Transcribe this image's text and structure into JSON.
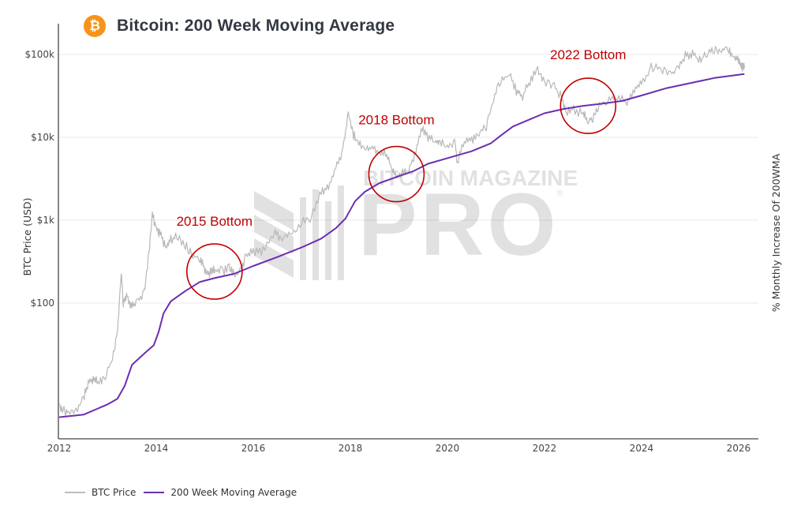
{
  "header": {
    "logo_icon": "bitcoin-icon",
    "logo_glyph": "₿",
    "title": "Bitcoin: 200 Week Moving Average"
  },
  "watermark": {
    "line1": "BITCOIN MAGAZINE",
    "line2": "PRO",
    "reg": "®"
  },
  "colors": {
    "price": "#b8b8b8",
    "wma": "#6a2fb0",
    "annotation": "#c00000",
    "logo": "#f7931a"
  },
  "chart_data": {
    "type": "line",
    "title": "Bitcoin: 200 Week Moving Average",
    "xlabel": "",
    "ylabel": "BTC Price (USD)",
    "y2label": "% Monthly Increase Of 200WMA",
    "yscale": "log",
    "ylim": [
      2.3,
      180000
    ],
    "xlim": [
      2012,
      2026.4
    ],
    "x_ticks": [
      "2012",
      "2014",
      "2016",
      "2018",
      "2020",
      "2022",
      "2024",
      "2026"
    ],
    "y_ticks": [
      {
        "value": 100000,
        "label": "$100k"
      },
      {
        "value": 10000,
        "label": "$10k"
      },
      {
        "value": 1000,
        "label": "$1k"
      },
      {
        "value": 100,
        "label": "$100"
      }
    ],
    "grid": true,
    "legend_position": "bottom-left",
    "series": [
      {
        "name": "BTC Price",
        "points": [
          [
            2012.0,
            6
          ],
          [
            2012.1,
            5
          ],
          [
            2012.2,
            4.8
          ],
          [
            2012.35,
            5
          ],
          [
            2012.5,
            7
          ],
          [
            2012.6,
            11
          ],
          [
            2012.7,
            12
          ],
          [
            2012.8,
            11
          ],
          [
            2012.95,
            13
          ],
          [
            2013.1,
            22
          ],
          [
            2013.2,
            45
          ],
          [
            2013.28,
            230
          ],
          [
            2013.32,
            100
          ],
          [
            2013.4,
            120
          ],
          [
            2013.5,
            90
          ],
          [
            2013.6,
            105
          ],
          [
            2013.75,
            130
          ],
          [
            2013.85,
            400
          ],
          [
            2013.92,
            1150
          ],
          [
            2014.0,
            800
          ],
          [
            2014.1,
            650
          ],
          [
            2014.2,
            450
          ],
          [
            2014.3,
            600
          ],
          [
            2014.45,
            620
          ],
          [
            2014.6,
            500
          ],
          [
            2014.75,
            380
          ],
          [
            2014.9,
            330
          ],
          [
            2015.0,
            260
          ],
          [
            2015.1,
            230
          ],
          [
            2015.2,
            250
          ],
          [
            2015.35,
            240
          ],
          [
            2015.5,
            270
          ],
          [
            2015.6,
            220
          ],
          [
            2015.75,
            250
          ],
          [
            2015.85,
            380
          ],
          [
            2016.0,
            420
          ],
          [
            2016.2,
            420
          ],
          [
            2016.45,
            680
          ],
          [
            2016.6,
            600
          ],
          [
            2016.8,
            700
          ],
          [
            2017.0,
            950
          ],
          [
            2017.2,
            1100
          ],
          [
            2017.4,
            2200
          ],
          [
            2017.55,
            2600
          ],
          [
            2017.7,
            4400
          ],
          [
            2017.85,
            7000
          ],
          [
            2017.96,
            19500
          ],
          [
            2018.05,
            11000
          ],
          [
            2018.15,
            9000
          ],
          [
            2018.3,
            7000
          ],
          [
            2018.45,
            7500
          ],
          [
            2018.6,
            6500
          ],
          [
            2018.75,
            6400
          ],
          [
            2018.87,
            4000
          ],
          [
            2018.95,
            3500
          ],
          [
            2019.05,
            3600
          ],
          [
            2019.2,
            4000
          ],
          [
            2019.35,
            7000
          ],
          [
            2019.48,
            13000
          ],
          [
            2019.6,
            10000
          ],
          [
            2019.75,
            8500
          ],
          [
            2019.85,
            9000
          ],
          [
            2020.0,
            7200
          ],
          [
            2020.15,
            9500
          ],
          [
            2020.2,
            5000
          ],
          [
            2020.35,
            8800
          ],
          [
            2020.5,
            9300
          ],
          [
            2020.65,
            11500
          ],
          [
            2020.8,
            13000
          ],
          [
            2020.95,
            29000
          ],
          [
            2021.1,
            48000
          ],
          [
            2021.28,
            60000
          ],
          [
            2021.42,
            36000
          ],
          [
            2021.55,
            32000
          ],
          [
            2021.7,
            47000
          ],
          [
            2021.86,
            66000
          ],
          [
            2022.0,
            47000
          ],
          [
            2022.2,
            42000
          ],
          [
            2022.35,
            30000
          ],
          [
            2022.45,
            20000
          ],
          [
            2022.6,
            22000
          ],
          [
            2022.8,
            19000
          ],
          [
            2022.9,
            16500
          ],
          [
            2023.0,
            17000
          ],
          [
            2023.1,
            23000
          ],
          [
            2023.3,
            28000
          ],
          [
            2023.5,
            30000
          ],
          [
            2023.7,
            26500
          ],
          [
            2023.85,
            37000
          ],
          [
            2024.0,
            44000
          ],
          [
            2024.2,
            70000
          ],
          [
            2024.4,
            66000
          ],
          [
            2024.6,
            58000
          ],
          [
            2024.75,
            66000
          ],
          [
            2024.9,
            98000
          ],
          [
            2025.05,
            102000
          ],
          [
            2025.2,
            84000
          ],
          [
            2025.35,
            104000
          ],
          [
            2025.5,
            118000
          ],
          [
            2025.65,
            113000
          ],
          [
            2025.8,
            115000
          ],
          [
            2025.9,
            95000
          ],
          [
            2026.0,
            88000
          ],
          [
            2026.08,
            70000
          ],
          [
            2026.12,
            68000
          ]
        ]
      },
      {
        "name": "200 Week Moving Average",
        "points": [
          [
            2012.0,
            4.2
          ],
          [
            2012.5,
            4.5
          ],
          [
            2013.0,
            6
          ],
          [
            2013.2,
            7
          ],
          [
            2013.35,
            10
          ],
          [
            2013.5,
            18
          ],
          [
            2013.8,
            26
          ],
          [
            2013.95,
            31
          ],
          [
            2014.05,
            45
          ],
          [
            2014.15,
            75
          ],
          [
            2014.3,
            105
          ],
          [
            2014.6,
            140
          ],
          [
            2014.9,
            180
          ],
          [
            2015.2,
            200
          ],
          [
            2015.6,
            225
          ],
          [
            2016.0,
            280
          ],
          [
            2016.5,
            360
          ],
          [
            2017.0,
            470
          ],
          [
            2017.4,
            600
          ],
          [
            2017.7,
            800
          ],
          [
            2017.9,
            1050
          ],
          [
            2018.1,
            1700
          ],
          [
            2018.3,
            2200
          ],
          [
            2018.6,
            2800
          ],
          [
            2019.0,
            3400
          ],
          [
            2019.3,
            3900
          ],
          [
            2019.6,
            4800
          ],
          [
            2020.0,
            5600
          ],
          [
            2020.5,
            6800
          ],
          [
            2020.9,
            8500
          ],
          [
            2021.1,
            10500
          ],
          [
            2021.35,
            13500
          ],
          [
            2021.7,
            16500
          ],
          [
            2022.0,
            19500
          ],
          [
            2022.4,
            22000
          ],
          [
            2022.8,
            24000
          ],
          [
            2023.2,
            25500
          ],
          [
            2023.6,
            27500
          ],
          [
            2024.0,
            32000
          ],
          [
            2024.5,
            39000
          ],
          [
            2025.0,
            45000
          ],
          [
            2025.5,
            52000
          ],
          [
            2026.12,
            58000
          ]
        ]
      }
    ],
    "annotations": [
      {
        "text": "2015 Bottom",
        "x": 2015.2,
        "y": 240
      },
      {
        "text": "2018 Bottom",
        "x": 2018.95,
        "y": 3600
      },
      {
        "text": "2022 Bottom",
        "x": 2022.9,
        "y": 24000
      }
    ]
  }
}
